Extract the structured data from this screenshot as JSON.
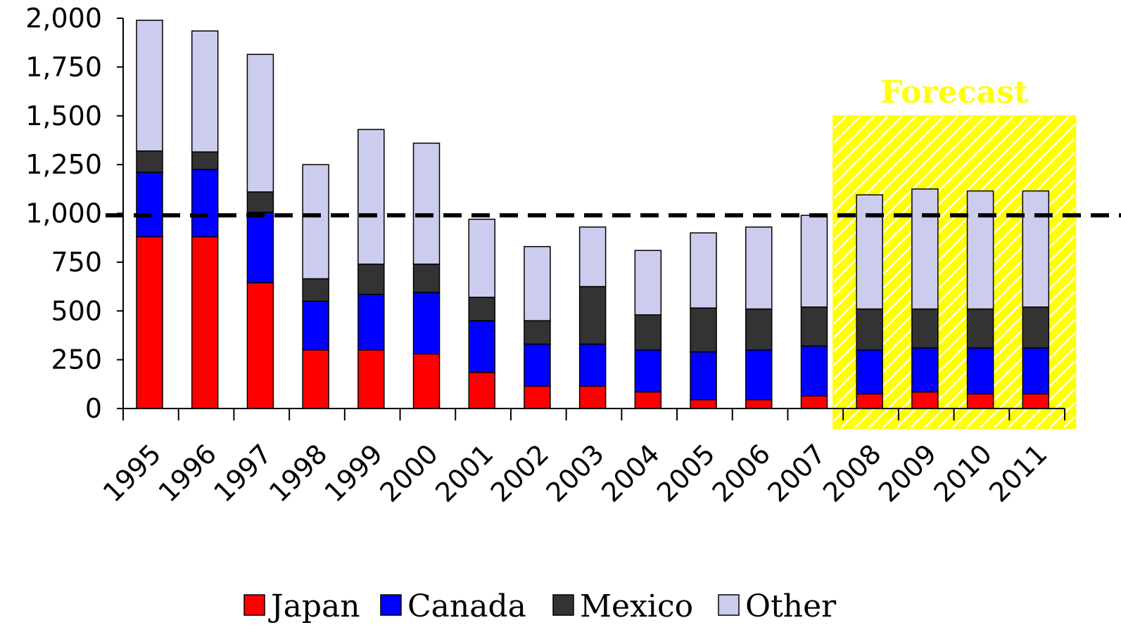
{
  "chart_data": {
    "type": "bar",
    "stacked": true,
    "categories": [
      "1995",
      "1996",
      "1997",
      "1998",
      "1999",
      "2000",
      "2001",
      "2002",
      "2003",
      "2004",
      "2005",
      "2006",
      "2007",
      "2008",
      "2009",
      "2010",
      "2011"
    ],
    "series": [
      {
        "name": "Japan",
        "color": "#ff0000",
        "values": [
          880,
          880,
          645,
          300,
          300,
          280,
          185,
          115,
          115,
          85,
          45,
          45,
          65,
          75,
          85,
          75,
          75
        ]
      },
      {
        "name": "Canada",
        "color": "#0000ff",
        "values": [
          330,
          345,
          360,
          250,
          285,
          315,
          265,
          215,
          215,
          215,
          245,
          255,
          255,
          225,
          225,
          235,
          235
        ]
      },
      {
        "name": "Mexico",
        "color": "#333333",
        "values": [
          110,
          90,
          105,
          115,
          155,
          145,
          120,
          120,
          295,
          180,
          225,
          210,
          200,
          210,
          200,
          200,
          210
        ]
      },
      {
        "name": "Other",
        "color": "#ccccee",
        "values": [
          670,
          620,
          705,
          585,
          690,
          620,
          400,
          380,
          305,
          330,
          385,
          420,
          470,
          585,
          615,
          605,
          595
        ]
      }
    ],
    "ylim": [
      0,
      2000
    ],
    "yticks": [
      0,
      250,
      500,
      750,
      1000,
      1250,
      1500,
      1750,
      2000
    ],
    "ytick_labels": [
      "0",
      "250",
      "500",
      "750",
      "1,000",
      "1,250",
      "1,500",
      "1,750",
      "2,000"
    ],
    "reference_line": {
      "value": 990,
      "style": "dashed",
      "color": "#000000"
    },
    "forecast": {
      "label": "Forecast",
      "from": "2008",
      "to": "2011",
      "color": "#ffff00"
    },
    "legend_position": "bottom",
    "grid": false,
    "title": "",
    "xlabel": "",
    "ylabel": ""
  }
}
